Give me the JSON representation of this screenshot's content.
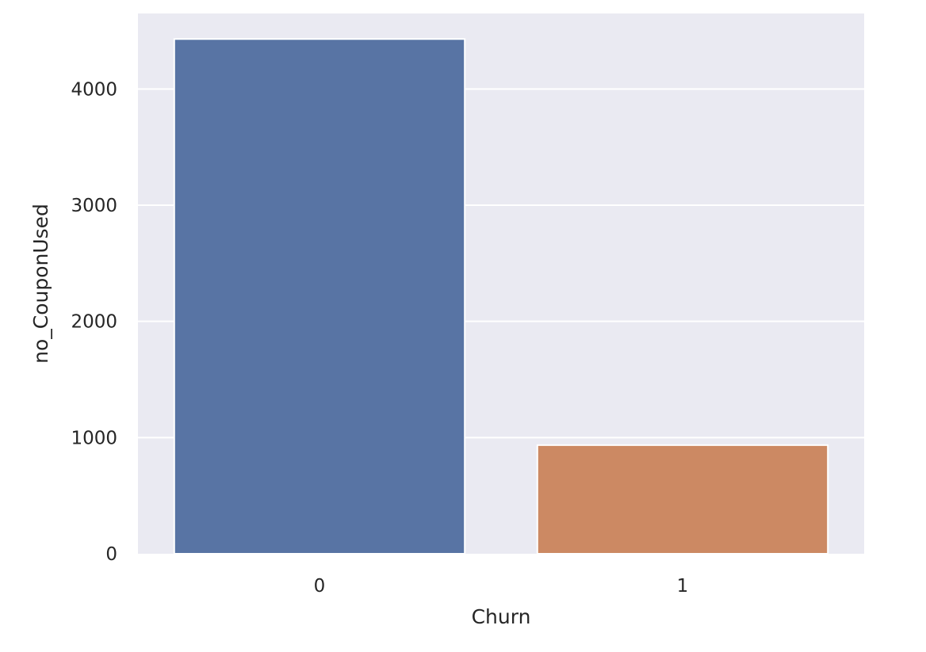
{
  "chart_data": {
    "type": "bar",
    "categories": [
      "0",
      "1"
    ],
    "values": [
      4430,
      935
    ],
    "xlabel": "Churn",
    "ylabel": "no_CouponUsed",
    "ylim": [
      0,
      4650
    ],
    "yticks": [
      0,
      1000,
      2000,
      3000,
      4000
    ],
    "grid": true,
    "colors": {
      "background": "#eaeaf2",
      "grid": "#ffffff",
      "bars": [
        "#5874a4",
        "#cc8963"
      ]
    }
  }
}
